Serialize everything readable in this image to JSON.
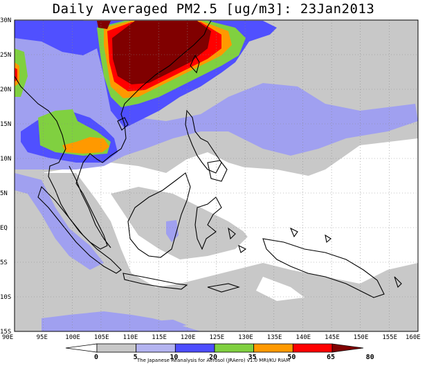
{
  "title": "Daily Averaged PM2.5 [ug/m3]: 23Jan2013",
  "credit": "The Japanese Reanalysis for Aerosol (JRAero) v1.0 MRI/KU RIAM",
  "lat_labels": [
    "30N",
    "25N",
    "20N",
    "15N",
    "10N",
    "5N",
    "EQ",
    "5S",
    "10S",
    "15S"
  ],
  "lon_labels": [
    "90E",
    "95E",
    "100E",
    "105E",
    "110E",
    "115E",
    "120E",
    "125E",
    "130E",
    "135E",
    "140E",
    "145E",
    "150E",
    "155E",
    "160E"
  ],
  "colorbar": {
    "ticks": [
      "0",
      "5",
      "10",
      "20",
      "35",
      "50",
      "65",
      "80"
    ],
    "colors": [
      "#ffffff",
      "#c8c8c8",
      "#b4b4f0",
      "#4d4dff",
      "#80d040",
      "#ff9900",
      "#ff0000",
      "#800000"
    ]
  },
  "colors": {
    "land_ocean_bg": "#ffffff",
    "grey": "#c8c8c8",
    "lightblue": "#a0a0f0",
    "blue": "#5050ff",
    "green": "#80d040",
    "orange": "#ff9900",
    "red": "#ff0000",
    "darkred": "#800000"
  }
}
